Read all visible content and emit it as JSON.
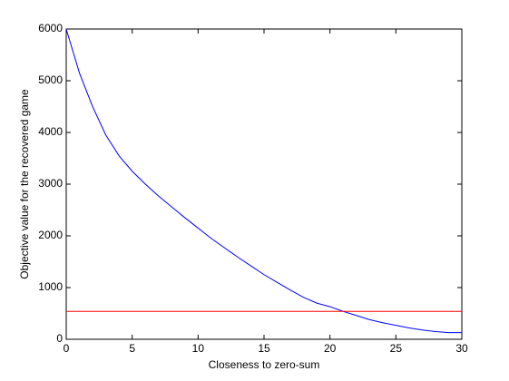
{
  "chart_data": {
    "type": "line",
    "xlabel": "Closeness to zero-sum",
    "ylabel": "Objective value for the recovered game",
    "series": [
      {
        "color": "#0000ff",
        "x": [
          0,
          1,
          2,
          3,
          4,
          5,
          6,
          7,
          8,
          9,
          10,
          11,
          12,
          13,
          14,
          15,
          16,
          17,
          18,
          19,
          20,
          21,
          22,
          23,
          24,
          25,
          26,
          27,
          28,
          29,
          30
        ],
        "values": [
          6000,
          5150,
          4500,
          3950,
          3550,
          3250,
          3000,
          2770,
          2560,
          2350,
          2150,
          1950,
          1770,
          1590,
          1420,
          1250,
          1100,
          950,
          810,
          700,
          630,
          540,
          460,
          380,
          320,
          270,
          220,
          180,
          150,
          130,
          130
        ]
      },
      {
        "color": "#ff0000",
        "x": [
          0,
          30
        ],
        "values": [
          540,
          540
        ]
      }
    ],
    "xlim": [
      0,
      30
    ],
    "xticks": [
      0,
      5,
      10,
      15,
      20,
      25,
      30
    ],
    "ylim": [
      0,
      6000
    ],
    "yticks": [
      0,
      1000,
      2000,
      3000,
      4000,
      5000,
      6000
    ],
    "grid": false
  }
}
